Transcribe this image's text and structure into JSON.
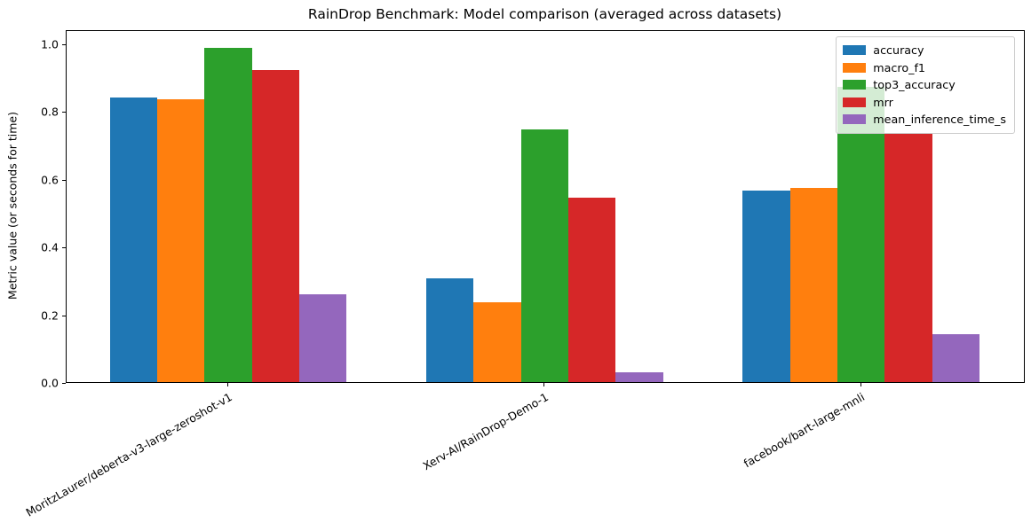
{
  "chart_data": {
    "type": "bar",
    "title": "RainDrop Benchmark: Model comparison (averaged across datasets)",
    "xlabel": "",
    "ylabel": "Metric value (or seconds for time)",
    "categories": [
      "MoritzLaurer/deberta-v3-large-zeroshot-v1",
      "Xerv-AI/RainDrop-Demo-1",
      "facebook/bart-large-mnli"
    ],
    "series": [
      {
        "name": "accuracy",
        "color": "#1f77b4",
        "values": [
          0.84,
          0.305,
          0.565
        ]
      },
      {
        "name": "macro_f1",
        "color": "#ff7f0e",
        "values": [
          0.835,
          0.236,
          0.572
        ]
      },
      {
        "name": "top3_accuracy",
        "color": "#2ca02c",
        "values": [
          0.985,
          0.745,
          0.87
        ]
      },
      {
        "name": "mrr",
        "color": "#d62728",
        "values": [
          0.92,
          0.545,
          0.735
        ]
      },
      {
        "name": "mean_inference_time_s",
        "color": "#9467bd",
        "values": [
          0.26,
          0.028,
          0.14
        ]
      }
    ],
    "y_ticks": [
      0.0,
      0.2,
      0.4,
      0.6,
      0.8,
      1.0
    ],
    "ylim": [
      0,
      1.04
    ],
    "grid": false,
    "legend_position": "upper right"
  }
}
